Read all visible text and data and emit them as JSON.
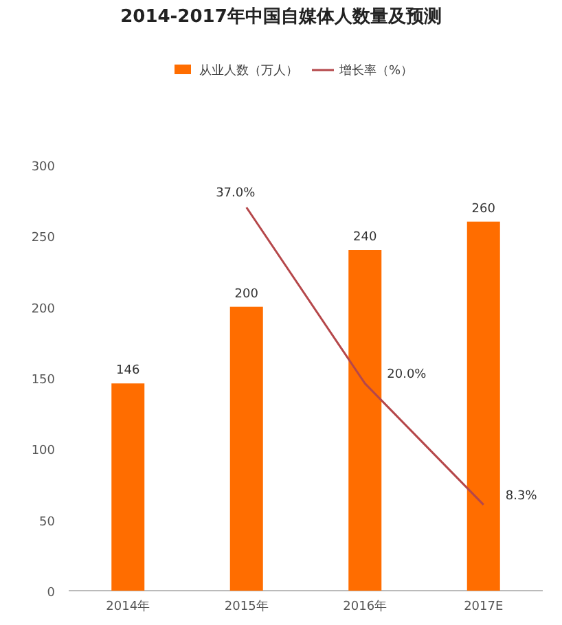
{
  "chart_data": {
    "type": "bar",
    "title": "2014-2017年中国自媒体人数量及预测",
    "categories": [
      "2014年",
      "2015年",
      "2016年",
      "2017E"
    ],
    "ylim": [
      0,
      300
    ],
    "yticks": [
      0,
      50,
      100,
      150,
      200,
      250,
      300
    ],
    "legend": "top",
    "series": [
      {
        "name": "从业人数（万人）",
        "color": "#ff6d00",
        "values": [
          146,
          200,
          240,
          260
        ],
        "value_labels": [
          "146",
          "200",
          "240",
          "260"
        ]
      },
      {
        "name": "增长率（%）",
        "type": "line",
        "axis": "y2",
        "color": "#b5474a",
        "values": [
          null,
          37.0,
          20.0,
          8.3
        ],
        "value_labels": [
          null,
          "37.0%",
          "20.0%",
          "8.3%"
        ]
      }
    ]
  }
}
